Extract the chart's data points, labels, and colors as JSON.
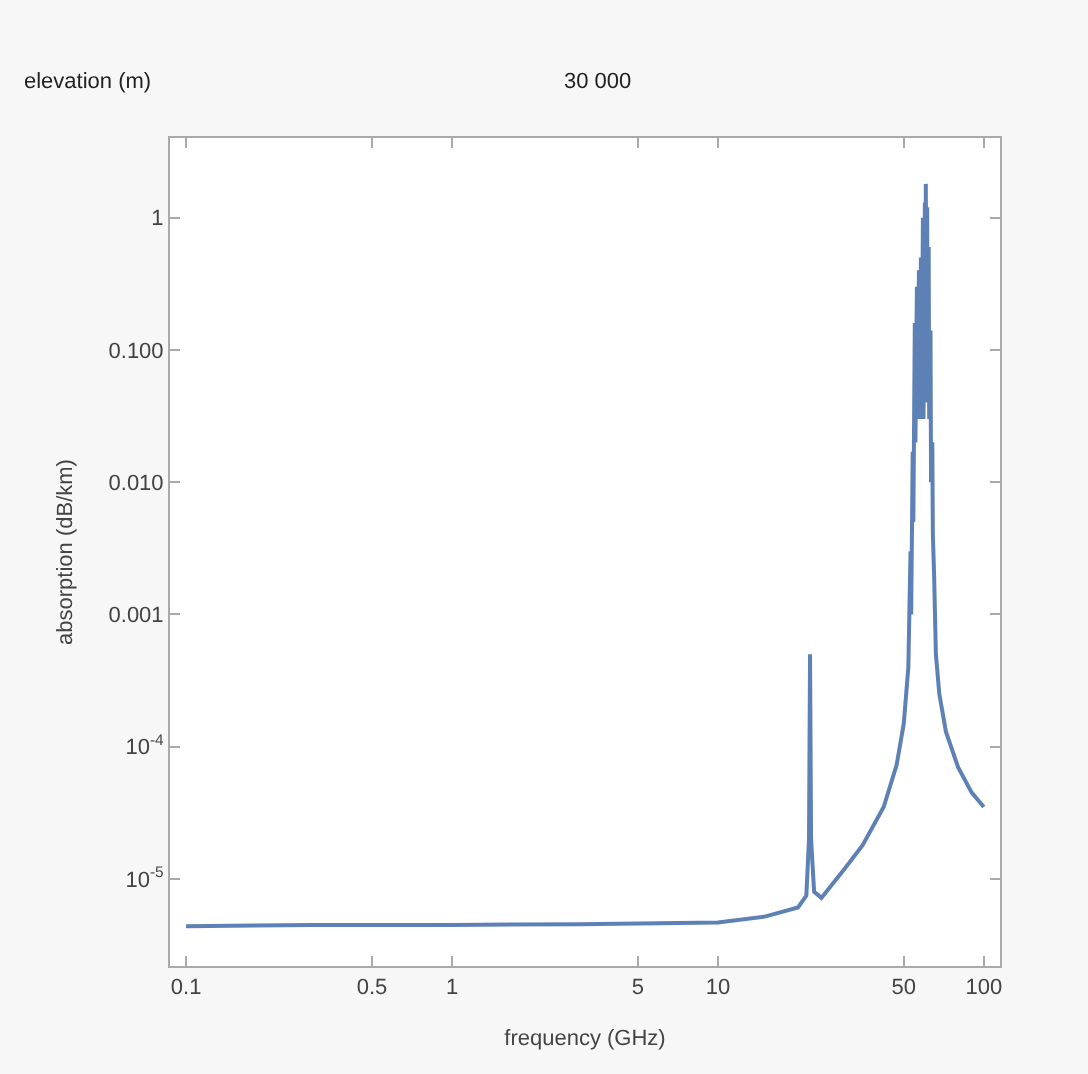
{
  "chart_data": {
    "type": "line",
    "xlabel": "frequency (GHz)",
    "ylabel": "absorption (dB/km)",
    "log": "xy",
    "marker": "none",
    "line_style": "solid",
    "annotations": [
      "elevation (m)",
      "30 000"
    ],
    "xlim": [
      0.087,
      115
    ],
    "xticks": [
      0.1,
      0.5,
      1,
      5,
      10,
      50,
      100
    ],
    "ylim": [
      2.2e-06,
      4
    ],
    "yticks": [
      1,
      {
        "value": 0.1,
        "label": "0.100"
      },
      {
        "value": 0.01,
        "label": "0.010"
      },
      0.001,
      {
        "value": 0.0001,
        "label": "10$^{-4}$"
      },
      {
        "value": 1e-05,
        "label": "10$^{-5}$"
      }
    ],
    "series": [
      {
        "color": "#5e81b5",
        "x": [
          0.1,
          0.3,
          1,
          3,
          10,
          15,
          20,
          21.5,
          22.0,
          22.2,
          22.4,
          23,
          24.5,
          30,
          35,
          42,
          47,
          50,
          52,
          53,
          53.3,
          54,
          54.3,
          55,
          55.3,
          56,
          56.3,
          57,
          57.3,
          58,
          58.3,
          59,
          59.3,
          60,
          60.3,
          60.5,
          60.8,
          61.2,
          61.5,
          62,
          62.3,
          63,
          63.3,
          64,
          64.3,
          65,
          65.5,
          66,
          68,
          72,
          80,
          90,
          100
        ],
        "values": [
          4.4e-06,
          4.5e-06,
          4.5e-06,
          4.55e-06,
          4.7e-06,
          5.2e-06,
          6.1e-06,
          7.5e-06,
          2e-05,
          0.0005,
          2e-05,
          8e-06,
          7.2e-06,
          1.2e-05,
          1.8e-05,
          3.5e-05,
          7.3e-05,
          0.00015,
          0.0004,
          0.003,
          0.001,
          0.017,
          0.005,
          0.16,
          0.02,
          0.3,
          0.03,
          0.4,
          0.03,
          0.5,
          0.03,
          1,
          0.03,
          1.3,
          0.04,
          1.8,
          0.05,
          1.2,
          0.04,
          0.6,
          0.03,
          0.14,
          0.01,
          0.02,
          0.004,
          0.002,
          0.001,
          0.0005,
          0.00025,
          0.00013,
          7e-05,
          4.5e-05,
          3.5e-05
        ]
      }
    ]
  }
}
